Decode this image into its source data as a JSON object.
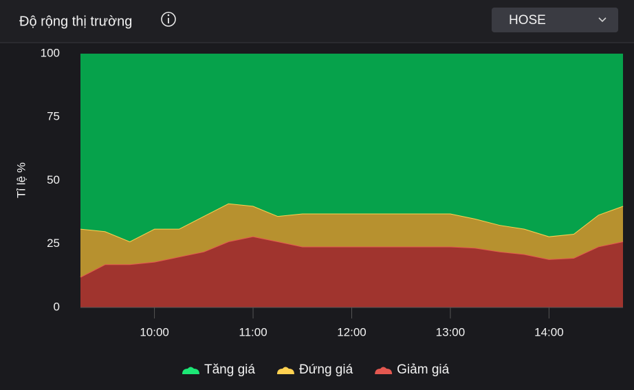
{
  "select": "HOSE",
  "chart_data": {
    "type": "area",
    "stacked": true,
    "title": "Độ rộng thị trường",
    "y_label": "Tỉ lệ %",
    "x": [
      "09:15",
      "09:30",
      "09:45",
      "10:00",
      "10:15",
      "10:30",
      "10:45",
      "11:00",
      "11:15",
      "11:30",
      "13:00",
      "13:15",
      "13:30",
      "13:45",
      "14:00",
      "14:15",
      "14:30",
      "14:45"
    ],
    "xlim": [
      "09:15",
      "14:45"
    ],
    "xticks": [
      "10:00",
      "11:00",
      "12:00",
      "13:00",
      "14:00"
    ],
    "ylim": [
      0,
      100
    ],
    "yticks": [
      0,
      25,
      50,
      75,
      100
    ],
    "series": [
      {
        "name": "Tăng giá",
        "color": "#06a24b",
        "values": [
          69,
          70,
          74,
          69,
          69,
          64,
          59,
          60,
          64,
          63,
          63,
          65,
          67.5,
          69,
          72,
          71,
          63.5,
          60
        ]
      },
      {
        "name": "Đứng giá",
        "color": "#b7912f",
        "values": [
          19,
          13,
          9,
          13,
          11,
          14,
          15,
          12,
          10,
          13,
          13,
          11.5,
          10.5,
          10,
          9,
          9.5,
          12.5,
          14
        ]
      },
      {
        "name": "Giảm giá",
        "color": "#a0342e",
        "values": [
          12,
          17,
          17,
          18,
          20,
          22,
          26,
          28,
          26,
          24,
          24,
          23.5,
          22,
          21,
          19,
          19.5,
          24,
          26
        ]
      }
    ]
  }
}
